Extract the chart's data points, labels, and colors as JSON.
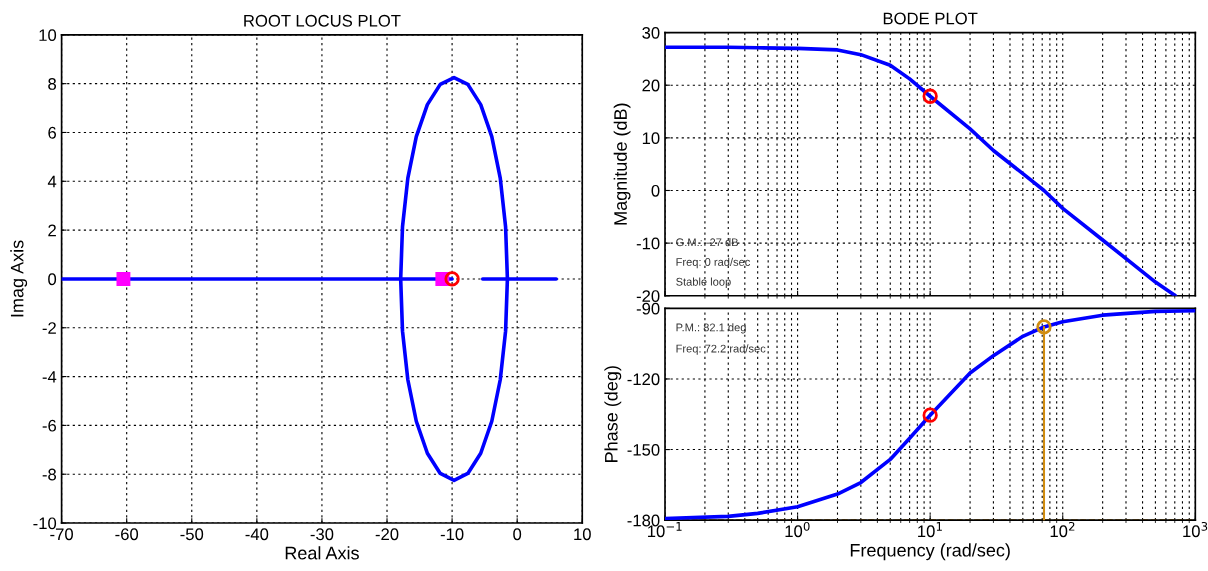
{
  "chart_data": [
    {
      "type": "line",
      "title": "ROOT LOCUS PLOT",
      "xlabel": "Real Axis",
      "ylabel": "Imag Axis",
      "xlim": [
        -70,
        10
      ],
      "ylim": [
        -10,
        10
      ],
      "xticks": [
        -70,
        -60,
        -50,
        -40,
        -30,
        -20,
        -10,
        0,
        10
      ],
      "yticks": [
        -10,
        -8,
        -6,
        -4,
        -2,
        0,
        2,
        4,
        6,
        8,
        10
      ],
      "grid": true,
      "series": [
        {
          "color": "#0000ff",
          "x": [
            -17.9,
            -17.62,
            -16.8,
            -15.5,
            -13.8,
            -11.82,
            -9.7,
            -7.58,
            -5.6,
            -3.9,
            -2.6,
            -1.78,
            -1.5,
            null,
            -17.9,
            -17.62,
            -16.8,
            -15.5,
            -13.8,
            -11.82,
            -9.7,
            -7.58,
            -5.6,
            -3.9,
            -2.6,
            -1.78,
            -1.5
          ],
          "values": [
            0,
            2.14,
            4.13,
            5.83,
            7.14,
            7.97,
            8.25,
            7.97,
            7.14,
            5.83,
            4.13,
            2.14,
            0,
            null,
            0,
            -2.14,
            -4.13,
            -5.83,
            -7.14,
            -7.97,
            -8.25,
            -7.97,
            -7.14,
            -5.83,
            -4.13,
            -2.14,
            0
          ]
        },
        {
          "color": "#0000ff",
          "x": [
            -70,
            -50,
            -30,
            -10
          ],
          "values": [
            0,
            0,
            0,
            0
          ]
        },
        {
          "color": "#0000ff",
          "x": [
            -5.3,
            0,
            6
          ],
          "values": [
            0,
            0,
            0
          ]
        },
        {
          "type": "scatter",
          "marker": "square",
          "color": "#ff00ff",
          "x": [
            -60.5,
            -11.5
          ],
          "values": [
            0,
            0
          ]
        },
        {
          "type": "scatter",
          "marker": "circle",
          "color": "#ff0000",
          "x": [
            -10
          ],
          "values": [
            0
          ]
        }
      ]
    },
    {
      "type": "line",
      "title": "BODE PLOT",
      "ylabel": "Magnitude (dB)",
      "log": "x",
      "xlim": [
        0.1,
        1000
      ],
      "ylim": [
        -20,
        30
      ],
      "xticks": [
        {
          "value": 0.1,
          "label": null
        },
        {
          "value": 1,
          "label": null
        },
        {
          "value": 10,
          "label": null
        },
        {
          "value": 100,
          "label": null
        },
        {
          "value": 1000,
          "label": null
        }
      ],
      "yticks": [
        -20,
        -10,
        0,
        10,
        20,
        30
      ],
      "grid": true,
      "tick_labels": "y",
      "annotations": [
        "G.M.: -27 dB",
        "Freq: 0 rad/sec",
        "Stable loop"
      ],
      "series": [
        {
          "color": "#0000ff",
          "x": [
            0.1,
            0.3,
            0.5,
            1,
            2,
            3,
            5,
            7,
            10,
            20,
            30,
            50,
            72.2,
            100,
            200,
            500,
            708
          ],
          "values": [
            27.2,
            27.2,
            27.1,
            27.0,
            26.7,
            25.8,
            23.8,
            21.2,
            17.9,
            11.7,
            7.6,
            3.2,
            0,
            -3.4,
            -9.4,
            -17.4,
            -20
          ]
        },
        {
          "type": "scatter",
          "marker": "circle",
          "color": "#ff0000",
          "x": [
            10
          ],
          "values": [
            17.9
          ]
        }
      ]
    },
    {
      "type": "line",
      "xlabel": "Frequency (rad/sec)",
      "ylabel": "Phase (deg)",
      "log": "x",
      "xlim": [
        0.1,
        1000
      ],
      "ylim": [
        -180,
        -90
      ],
      "xticks": [
        {
          "value": 0.1,
          "label": "10$^{−1}$"
        },
        {
          "value": 1,
          "label": "10$^{0}$"
        },
        {
          "value": 10,
          "label": "10$^{1}$"
        },
        {
          "value": 100,
          "label": "10$^{2}$"
        },
        {
          "value": 1000,
          "label": "10$^{3}$"
        }
      ],
      "yticks": [
        -180,
        -150,
        -120,
        -90
      ],
      "grid": true,
      "annotations": [
        "P.M.: 82.1 deg",
        "Freq: 72.2 rad/sec"
      ],
      "ref_lines": [
        {
          "axis": "y",
          "value": -180,
          "color": "#d08c10",
          "line_style": "dashed"
        }
      ],
      "series": [
        {
          "color": "#0000ff",
          "x": [
            0.1,
            0.3,
            0.5,
            1,
            2,
            3,
            5,
            7,
            10,
            20,
            30,
            50,
            72.2,
            100,
            200,
            500,
            1000
          ],
          "values": [
            -179.3,
            -178.4,
            -177.1,
            -174.3,
            -168.9,
            -164,
            -154.2,
            -145.2,
            -135.4,
            -117.5,
            -110.1,
            -101.9,
            -97.9,
            -95.7,
            -92.9,
            -91.3,
            -91.0
          ]
        },
        {
          "color": "#d08c10",
          "x": [
            72.2,
            72.2
          ],
          "values": [
            -180,
            -97.9
          ]
        },
        {
          "type": "scatter",
          "marker": "circle",
          "color": "#d08c10",
          "x": [
            72.2
          ],
          "values": [
            -97.9
          ]
        },
        {
          "type": "scatter",
          "marker": "circle",
          "color": "#ff0000",
          "x": [
            10
          ],
          "values": [
            -135.4
          ]
        }
      ]
    }
  ]
}
